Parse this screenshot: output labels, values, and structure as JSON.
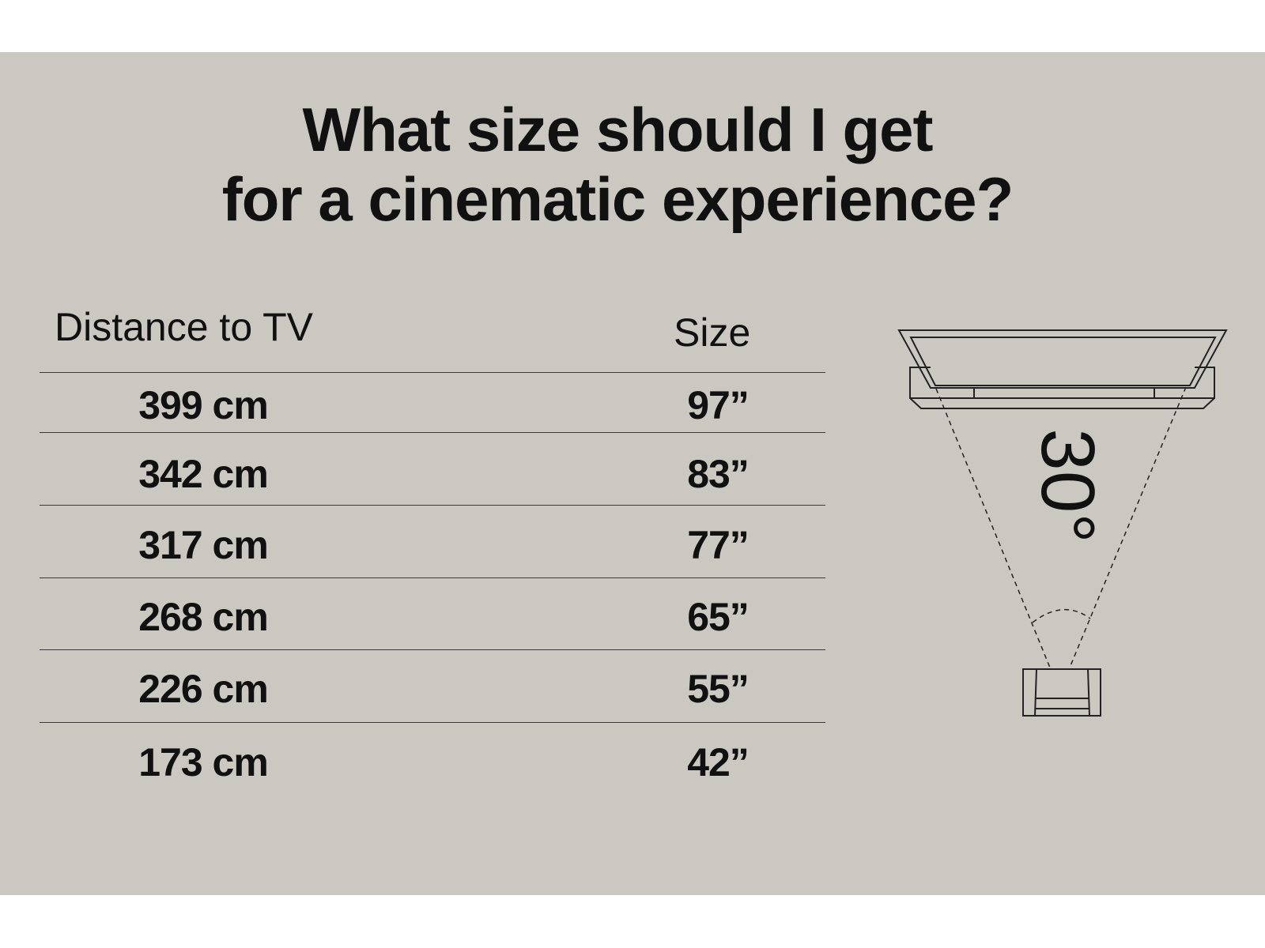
{
  "background_color": "#cbc8c2",
  "title": {
    "line1": "What size should I get",
    "line2": "for a cinematic experience?"
  },
  "table": {
    "headers": {
      "distance": "Distance to TV",
      "size": "Size"
    },
    "rows": [
      {
        "distance": "399 cm",
        "size": "97”"
      },
      {
        "distance": "342 cm",
        "size": "83”"
      },
      {
        "distance": "317 cm",
        "size": "77”"
      },
      {
        "distance": "268 cm",
        "size": "65”"
      },
      {
        "distance": "226 cm",
        "size": "55”"
      },
      {
        "distance": "173 cm",
        "size": "42”"
      }
    ]
  },
  "diagram": {
    "angle_label": "30°",
    "icons": [
      "tv-icon",
      "tv-stand-icon",
      "armchair-icon"
    ]
  }
}
